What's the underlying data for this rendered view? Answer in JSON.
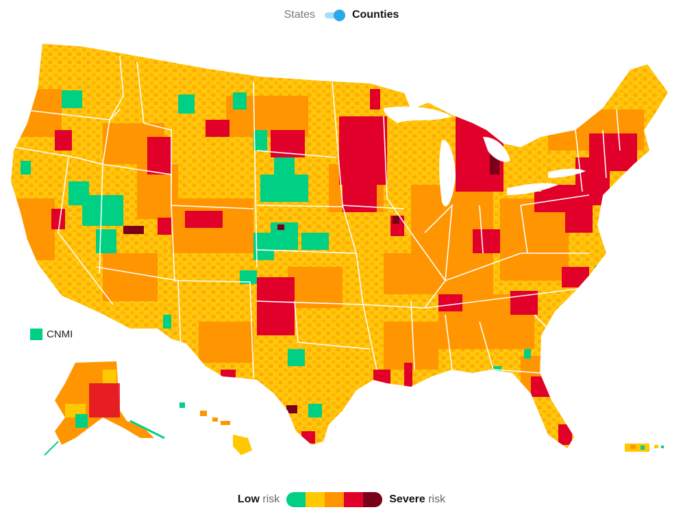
{
  "toggle": {
    "left_label": "States",
    "right_label": "Counties",
    "selected": "Counties"
  },
  "territory": {
    "label": "CNMI",
    "color": "#00d084"
  },
  "legend": {
    "low_bold": "Low",
    "low_rest": " risk",
    "high_bold": "Severe",
    "high_rest": " risk",
    "colors": [
      "#00d084",
      "#ffc800",
      "#ff9500",
      "#e0002a",
      "#7a0019"
    ]
  },
  "palette": {
    "green": "#00d084",
    "yellow": "#ffc800",
    "orange": "#ff9500",
    "red": "#e0002a",
    "dark": "#7a0019",
    "border": "#ffffff"
  }
}
